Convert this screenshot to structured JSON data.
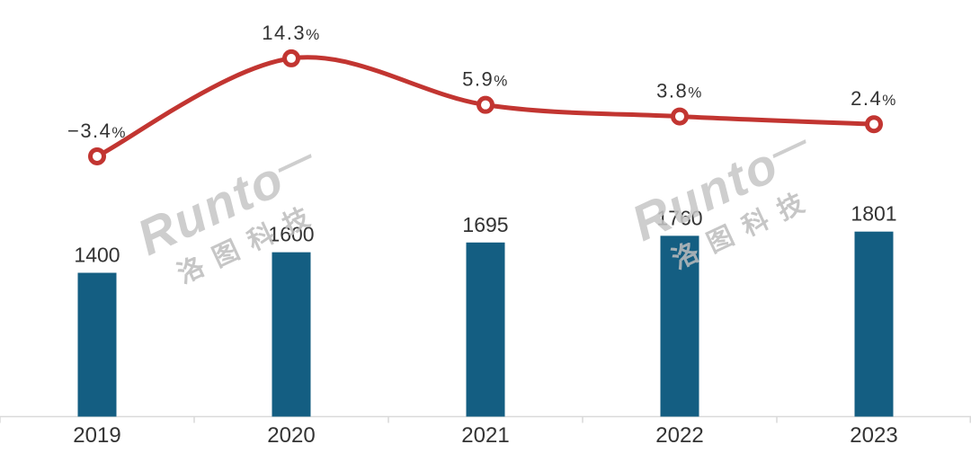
{
  "chart_data": {
    "type": "combo",
    "categories": [
      "2019",
      "2020",
      "2021",
      "2022",
      "2023"
    ],
    "series": [
      {
        "name": "annual-volume-bars",
        "type": "bar",
        "values": [
          1400,
          1600,
          1695,
          1760,
          1801
        ],
        "labels": [
          "1400",
          "1600",
          "1695",
          "1760",
          "1801"
        ],
        "color": "#145e82"
      },
      {
        "name": "yoy-growth-line",
        "type": "line",
        "values": [
          -3.4,
          14.3,
          5.9,
          3.8,
          2.4
        ],
        "labels": [
          "−3.4%",
          "14.3%",
          "5.9%",
          "3.8%",
          "2.4%"
        ],
        "color": "#c23531",
        "marker": "open-circle",
        "smooth": true
      }
    ],
    "title": "",
    "xlabel": "",
    "ylabel": "",
    "bar_axis_min": 0,
    "legend": "none",
    "gridlines": false,
    "y_axis_visible": false,
    "value_labels_visible": true,
    "axis_line_color": "#d9d9d9",
    "label_color": "#333333"
  },
  "watermark": {
    "text_en": "Runto",
    "dash": "—",
    "text_cn": "洛图科技"
  }
}
